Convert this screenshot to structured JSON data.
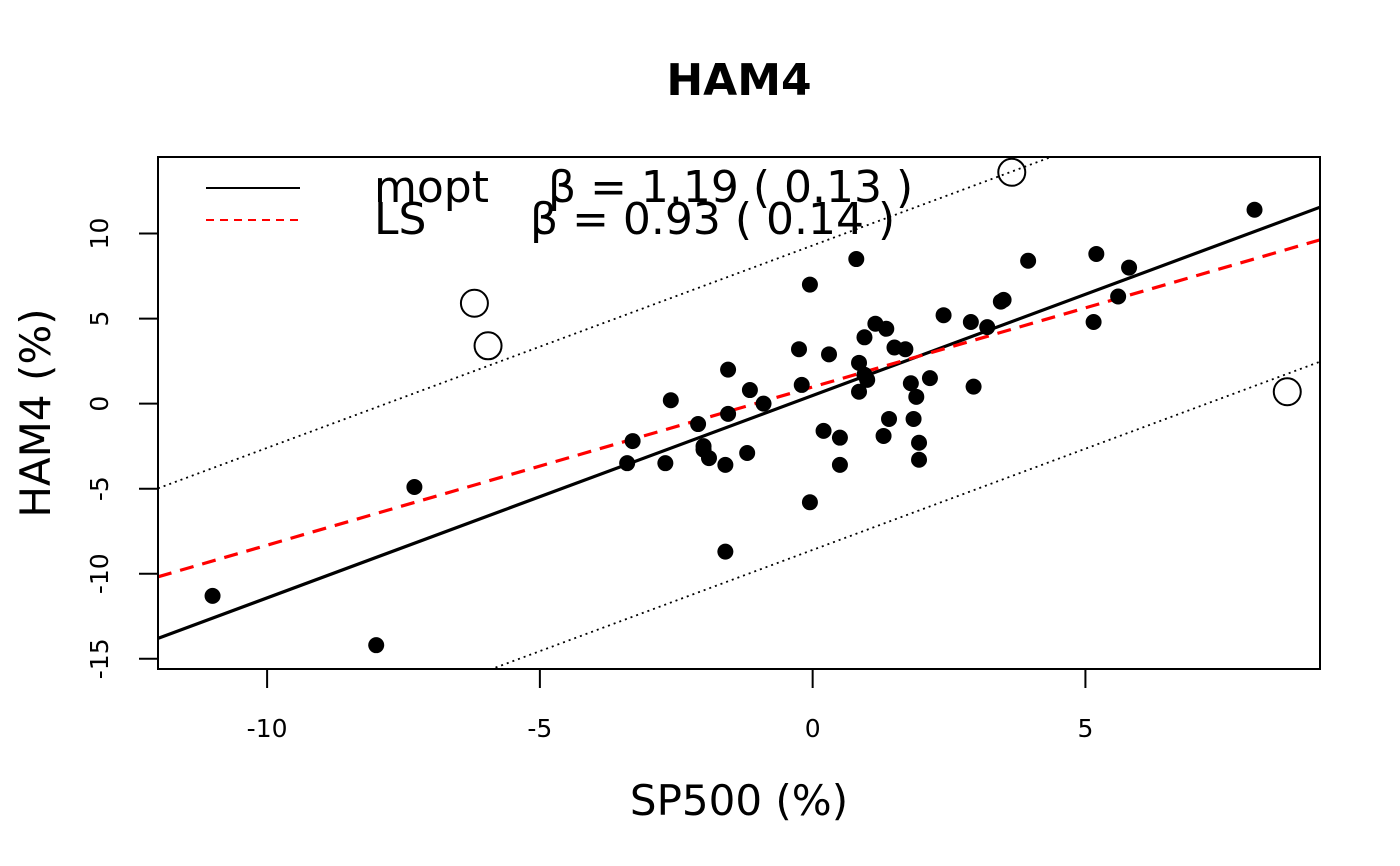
{
  "chart_data": {
    "type": "scatter",
    "title": "HAM4",
    "xlabel": "SP500  (%)",
    "ylabel": "HAM4  (%)",
    "xlim": [
      -12,
      9.3
    ],
    "ylim": [
      -15.6,
      14.5
    ],
    "x_ticks": [
      -10,
      -5,
      0,
      5
    ],
    "x_tick_labels": [
      "-10",
      "-5",
      "0",
      "5"
    ],
    "y_ticks": [
      -15,
      -10,
      -5,
      0,
      5,
      10
    ],
    "y_tick_labels": [
      "-15",
      "-10",
      "-5",
      "0",
      "5",
      "10"
    ],
    "grid": false,
    "legend_position": "top-left",
    "legend": [
      {
        "name": "mopt",
        "beta_text": "β = 1.19 ( 0.13 )",
        "color": "#000000",
        "linestyle": "solid"
      },
      {
        "name": "LS",
        "beta_text": "β = 0.93 ( 0.14 )",
        "color": "#ff0000",
        "linestyle": "dashed"
      }
    ],
    "lines": [
      {
        "name": "mopt",
        "intercept": 0.48,
        "slope": 1.19,
        "color": "#000000",
        "style": "solid"
      },
      {
        "name": "LS",
        "intercept": 0.98,
        "slope": 0.93,
        "color": "#ff0000",
        "style": "dashed"
      },
      {
        "name": "upper band",
        "intercept": 9.3,
        "slope": 1.19,
        "color": "#000000",
        "style": "dotted"
      },
      {
        "name": "lower band",
        "intercept": -8.6,
        "slope": 1.19,
        "color": "#000000",
        "style": "dotted"
      }
    ],
    "points": [
      {
        "x": -11.0,
        "y": -11.3
      },
      {
        "x": -8.0,
        "y": -14.2
      },
      {
        "x": -7.3,
        "y": -4.9
      },
      {
        "x": -3.4,
        "y": -3.5
      },
      {
        "x": -3.3,
        "y": -2.2
      },
      {
        "x": -2.7,
        "y": -3.5
      },
      {
        "x": -2.6,
        "y": 0.2
      },
      {
        "x": -2.1,
        "y": -1.2
      },
      {
        "x": -2.0,
        "y": -2.5
      },
      {
        "x": -2.0,
        "y": -2.7
      },
      {
        "x": -1.9,
        "y": -3.2
      },
      {
        "x": -1.6,
        "y": -8.7
      },
      {
        "x": -1.6,
        "y": -3.6
      },
      {
        "x": -1.55,
        "y": 2.0
      },
      {
        "x": -1.55,
        "y": -0.6
      },
      {
        "x": -1.2,
        "y": -2.9
      },
      {
        "x": -1.15,
        "y": 0.8
      },
      {
        "x": -0.9,
        "y": 0.0
      },
      {
        "x": -0.25,
        "y": 3.2
      },
      {
        "x": -0.2,
        "y": 1.1
      },
      {
        "x": -0.05,
        "y": 7.0
      },
      {
        "x": -0.05,
        "y": -5.8
      },
      {
        "x": 0.2,
        "y": -1.6
      },
      {
        "x": 0.3,
        "y": 2.9
      },
      {
        "x": 0.5,
        "y": -2.0
      },
      {
        "x": 0.5,
        "y": -3.6
      },
      {
        "x": 0.8,
        "y": 8.5
      },
      {
        "x": 0.85,
        "y": 2.4
      },
      {
        "x": 0.85,
        "y": 0.7
      },
      {
        "x": 0.95,
        "y": 1.7
      },
      {
        "x": 0.95,
        "y": 3.9
      },
      {
        "x": 1.0,
        "y": 1.4
      },
      {
        "x": 1.15,
        "y": 4.7
      },
      {
        "x": 1.3,
        "y": -1.9
      },
      {
        "x": 1.35,
        "y": 4.4
      },
      {
        "x": 1.4,
        "y": -0.9
      },
      {
        "x": 1.5,
        "y": 3.3
      },
      {
        "x": 1.7,
        "y": 3.2
      },
      {
        "x": 1.8,
        "y": 1.2
      },
      {
        "x": 1.85,
        "y": -0.9
      },
      {
        "x": 1.9,
        "y": 0.4
      },
      {
        "x": 1.95,
        "y": -2.3
      },
      {
        "x": 1.95,
        "y": -3.3
      },
      {
        "x": 2.15,
        "y": 1.5
      },
      {
        "x": 2.4,
        "y": 5.2
      },
      {
        "x": 2.9,
        "y": 4.8
      },
      {
        "x": 2.95,
        "y": 1.0
      },
      {
        "x": 3.2,
        "y": 4.5
      },
      {
        "x": 3.45,
        "y": 6.0
      },
      {
        "x": 3.5,
        "y": 6.1
      },
      {
        "x": 3.95,
        "y": 8.4
      },
      {
        "x": 5.15,
        "y": 4.8
      },
      {
        "x": 5.2,
        "y": 8.8
      },
      {
        "x": 5.6,
        "y": 6.3
      },
      {
        "x": 5.8,
        "y": 8.0
      },
      {
        "x": 8.1,
        "y": 11.4
      }
    ],
    "outliers": [
      {
        "x": -6.2,
        "y": 5.9
      },
      {
        "x": -5.95,
        "y": 3.4
      },
      {
        "x": 3.65,
        "y": 13.6
      },
      {
        "x": 8.7,
        "y": 0.7
      }
    ]
  }
}
